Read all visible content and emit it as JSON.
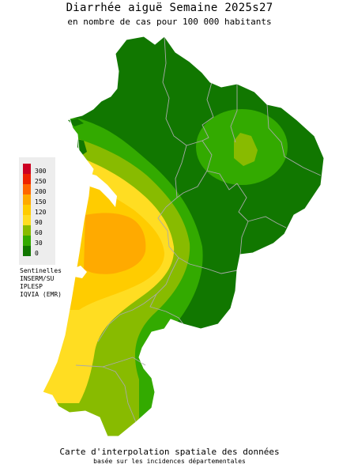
{
  "header": {
    "title": "Diarrhée aiguë Semaine 2025s27",
    "subtitle": "en nombre de cas pour 100 000 habitants"
  },
  "legend": {
    "items": [
      {
        "label": "300",
        "color": "#cc0022"
      },
      {
        "label": "250",
        "color": "#ee2200"
      },
      {
        "label": "200",
        "color": "#ff6600"
      },
      {
        "label": "150",
        "color": "#ffaa00"
      },
      {
        "label": "120",
        "color": "#ffcc00"
      },
      {
        "label": "90",
        "color": "#ffdd22"
      },
      {
        "label": "60",
        "color": "#88bb00"
      },
      {
        "label": "30",
        "color": "#33aa00"
      },
      {
        "label": "0",
        "color": "#117700"
      }
    ]
  },
  "sources": {
    "lines": [
      "Sentinelles",
      "INSERM/SU",
      "IPLESP",
      "IQVIA (EMR)"
    ]
  },
  "footer": {
    "line1": "Carte d'interpolation spatiale des données",
    "line2": "basée sur les incidences départementales"
  },
  "colors": {
    "dark_green": "#117700",
    "green": "#33aa00",
    "light_green": "#88bb00",
    "yellow": "#ffdd22",
    "gold": "#ffcc00",
    "orange": "#ffaa00",
    "border": "#aaaaaa",
    "legend_bg": "#ededed"
  }
}
